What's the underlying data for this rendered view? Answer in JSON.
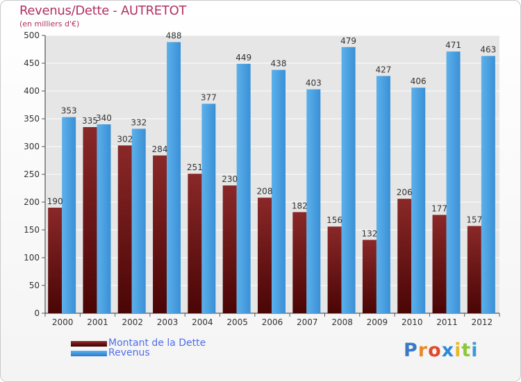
{
  "chart_data": {
    "type": "bar",
    "title": "Revenus/Dette - AUTRETOT",
    "subtitle": "(en milliers d'€)",
    "xlabel": "",
    "ylabel": "",
    "categories": [
      "2000",
      "2001",
      "2002",
      "2003",
      "2004",
      "2005",
      "2006",
      "2007",
      "2008",
      "2009",
      "2010",
      "2011",
      "2012"
    ],
    "series": [
      {
        "name": "Montant de la Dette",
        "color": "#7a1a1a",
        "values": [
          190,
          335,
          302,
          284,
          251,
          230,
          208,
          182,
          156,
          132,
          206,
          177,
          157
        ]
      },
      {
        "name": "Revenus",
        "color": "#3a92d8",
        "values": [
          353,
          340,
          332,
          488,
          377,
          449,
          438,
          403,
          479,
          427,
          406,
          471,
          463
        ]
      }
    ],
    "ylim": [
      0,
      500
    ],
    "yticks": [
      0,
      50,
      100,
      150,
      200,
      250,
      300,
      350,
      400,
      450,
      500
    ],
    "grid": true,
    "legend_position": "bottom-left"
  },
  "watermark": {
    "letters": [
      "P",
      "r",
      "o",
      "x",
      "i",
      "t",
      "i"
    ],
    "colors": [
      "#3a78c8",
      "#e88a2a",
      "#e04a2a",
      "#2a8ad8",
      "#e8b82a",
      "#8ac83a",
      "#3a9ad8"
    ]
  }
}
